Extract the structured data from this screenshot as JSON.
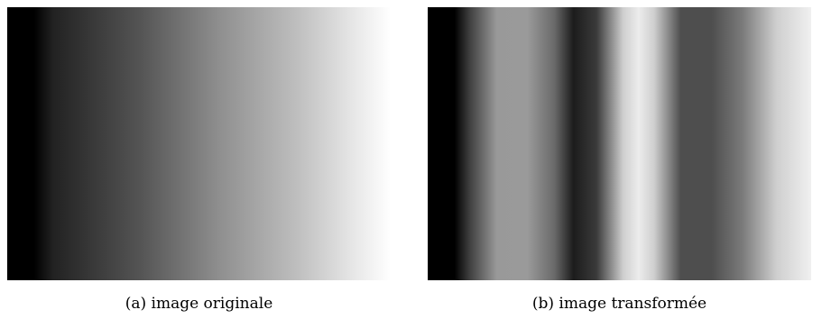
{
  "figures": [
    {
      "caption": "(a) image originale"
    },
    {
      "caption": "(b) image transformée"
    }
  ]
}
